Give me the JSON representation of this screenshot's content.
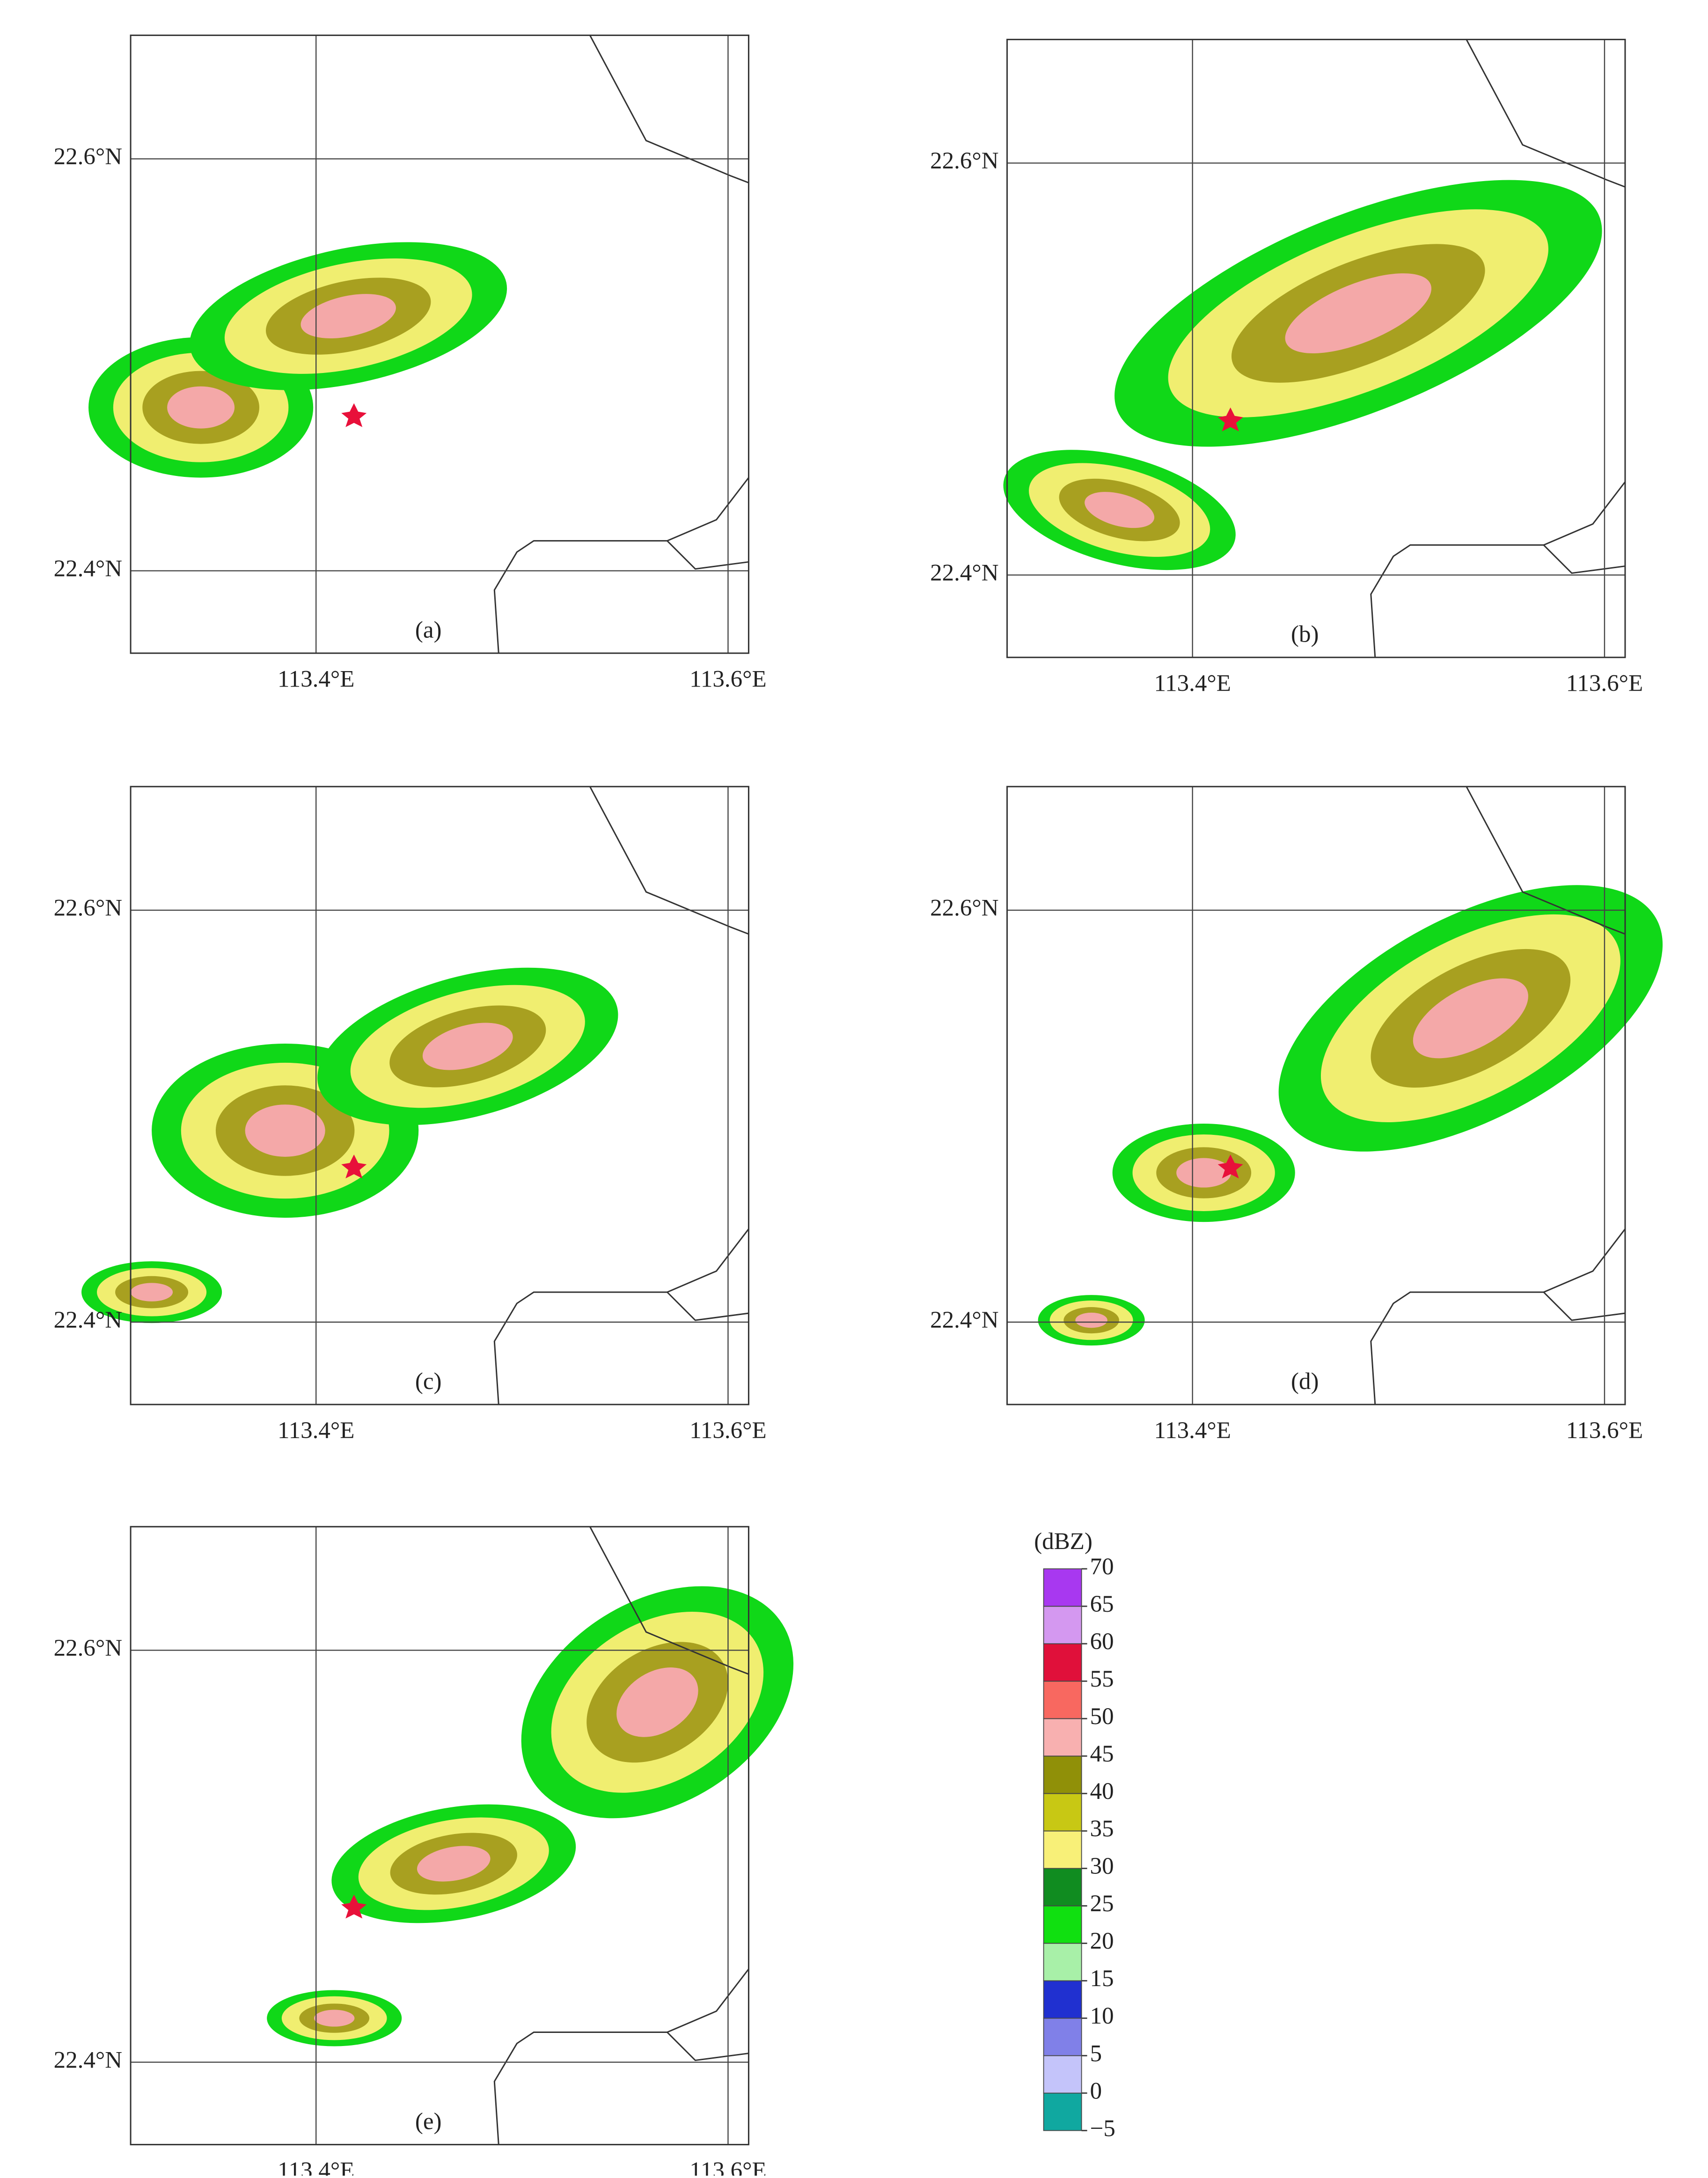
{
  "panels": [
    {
      "label": "(a)"
    },
    {
      "label": "(b)"
    },
    {
      "label": "(c)"
    },
    {
      "label": "(d)"
    },
    {
      "label": "(e)"
    }
  ],
  "map": {
    "xlim": [
      113.31,
      113.61
    ],
    "ylim": [
      22.36,
      22.66
    ],
    "xticks": [
      {
        "value": 113.4,
        "label": "113.4°E"
      },
      {
        "value": 113.6,
        "label": "113.6°E"
      }
    ],
    "yticks": [
      {
        "value": 22.4,
        "label": "22.4°N"
      },
      {
        "value": 22.6,
        "label": "22.6°N"
      }
    ]
  },
  "colorbar": {
    "unit": "(dBZ)",
    "levels": [
      {
        "value": -5,
        "label": "−5"
      },
      0,
      5,
      10,
      15,
      20,
      25,
      30,
      35,
      40,
      45,
      50,
      55,
      60,
      65,
      70
    ],
    "colors": [
      "#10a8a0",
      "#c4c4fa",
      "#8080e8",
      "#2030d0",
      "#a8f0a8",
      "#10e010",
      "#108c20",
      "#f8f078",
      "#c8c814",
      "#909008",
      "#f8b0b0",
      "#f86860",
      "#e0103a",
      "#d498f0",
      "#a838f0"
    ]
  }
}
